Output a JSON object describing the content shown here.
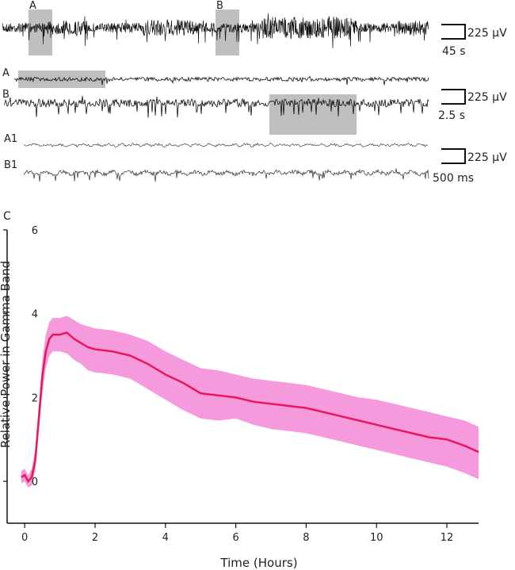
{
  "panels": {
    "trace_top": {
      "marker_a": "A",
      "marker_b": "B"
    },
    "trace_a": {
      "label": "A"
    },
    "trace_b": {
      "label": "B"
    },
    "trace_a1": {
      "label": "A1"
    },
    "trace_b1": {
      "label": "B1"
    },
    "panel_c": {
      "label": "C"
    }
  },
  "scale_bars": [
    {
      "amplitude": "225 μV",
      "duration": "45 s"
    },
    {
      "amplitude": "225 μV",
      "duration": "2.5 s"
    },
    {
      "amplitude": "225 μV",
      "duration": "500 ms"
    }
  ],
  "colors": {
    "trace": "#111111",
    "highlight": "#bfbfbf",
    "mean_line": "#e8175d",
    "error_band": "#f48fd8"
  },
  "chart_data": {
    "type": "line",
    "title": "",
    "xlabel": "Time (Hours)",
    "ylabel": "Relative Power in Gamma Band",
    "xlim": [
      -0.5,
      12.9
    ],
    "ylim": [
      -1,
      6
    ],
    "xticks": [
      0,
      2,
      4,
      6,
      8,
      10,
      12
    ],
    "yticks": [
      0,
      2,
      4,
      6
    ],
    "grid": false,
    "series": [
      {
        "x": [
          -0.1,
          0.0,
          0.1,
          0.2,
          0.3,
          0.4,
          0.5,
          0.6,
          0.7,
          0.8,
          1.0,
          1.2,
          1.4,
          1.6,
          1.8,
          2.0,
          2.5,
          3.0,
          3.5,
          4.0,
          4.5,
          5.0,
          5.5,
          6.0,
          6.5,
          7.0,
          7.5,
          8.0,
          8.5,
          9.0,
          9.5,
          10.0,
          10.5,
          11.0,
          11.5,
          12.0,
          12.5,
          12.9
        ],
        "y": [
          0.1,
          0.15,
          0.0,
          0.1,
          0.5,
          1.5,
          2.5,
          3.1,
          3.4,
          3.5,
          3.5,
          3.55,
          3.4,
          3.3,
          3.2,
          3.15,
          3.1,
          3.0,
          2.8,
          2.55,
          2.35,
          2.1,
          2.05,
          2.0,
          1.9,
          1.85,
          1.8,
          1.75,
          1.65,
          1.55,
          1.45,
          1.35,
          1.25,
          1.15,
          1.05,
          1.0,
          0.85,
          0.7
        ],
        "lower": [
          -0.05,
          0.0,
          -0.15,
          -0.1,
          0.25,
          1.2,
          2.1,
          2.7,
          3.0,
          3.1,
          3.1,
          3.05,
          2.9,
          2.8,
          2.65,
          2.6,
          2.55,
          2.45,
          2.2,
          1.95,
          1.7,
          1.5,
          1.45,
          1.5,
          1.35,
          1.25,
          1.2,
          1.15,
          1.05,
          0.95,
          0.85,
          0.75,
          0.65,
          0.55,
          0.45,
          0.35,
          0.2,
          0.05
        ],
        "upper": [
          0.25,
          0.3,
          0.15,
          0.3,
          0.75,
          1.8,
          2.9,
          3.5,
          3.8,
          3.9,
          3.9,
          3.95,
          3.85,
          3.75,
          3.7,
          3.65,
          3.6,
          3.5,
          3.35,
          3.1,
          2.9,
          2.7,
          2.65,
          2.55,
          2.45,
          2.4,
          2.35,
          2.3,
          2.2,
          2.1,
          2.0,
          1.95,
          1.85,
          1.75,
          1.65,
          1.55,
          1.45,
          1.3
        ]
      }
    ]
  }
}
